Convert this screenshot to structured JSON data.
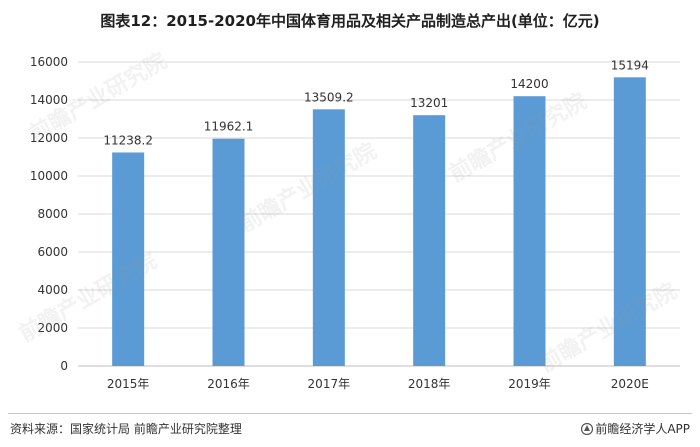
{
  "title": "图表12：2015-2020年中国体育用品及相关产品制造总产出(单位：亿元)",
  "source": "资料来源：国家统计局 前瞻产业研究院整理",
  "brand": "前瞻经济学人APP",
  "watermark": "前瞻产业研究院",
  "colors": {
    "bar": "#5b9bd5",
    "grid": "#d9d9d9",
    "axis": "#bfbfbf",
    "text": "#333333"
  },
  "chart_data": {
    "type": "bar",
    "title": "图表12：2015-2020年中国体育用品及相关产品制造总产出(单位：亿元)",
    "categories": [
      "2015年",
      "2016年",
      "2017年",
      "2018年",
      "2019年",
      "2020E"
    ],
    "values": [
      11238.2,
      11962.1,
      13509.2,
      13201,
      14200,
      15194
    ],
    "value_labels": [
      "11238.2",
      "11962.1",
      "13509.2",
      "13201",
      "14200",
      "15194"
    ],
    "ylim": [
      0,
      16000
    ],
    "yticks": [
      0,
      2000,
      4000,
      6000,
      8000,
      10000,
      12000,
      14000,
      16000
    ],
    "grid": true,
    "legend": "none",
    "xlabel": "",
    "ylabel": ""
  }
}
